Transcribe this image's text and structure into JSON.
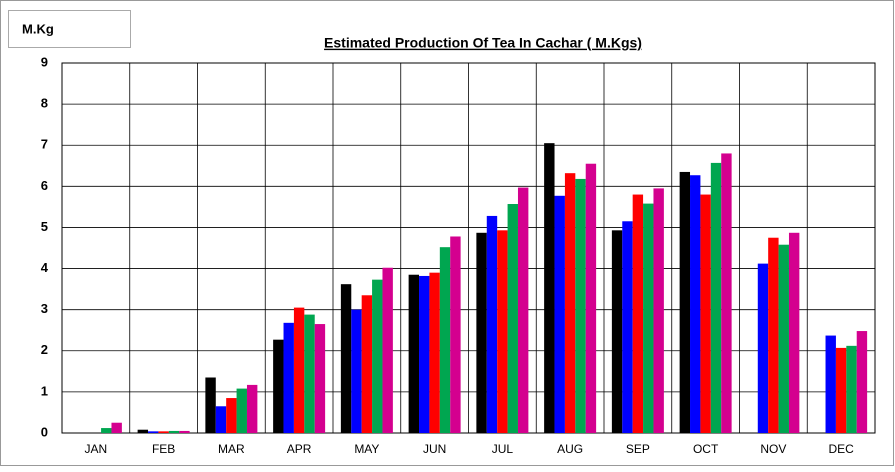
{
  "chart_data": {
    "type": "bar",
    "title": "Estimated Production Of Tea In Cachar ( M.Kgs)",
    "y_label": "M.Kg",
    "categories": [
      "JAN",
      "FEB",
      "MAR",
      "APR",
      "MAY",
      "JUN",
      "JUL",
      "AUG",
      "SEP",
      "OCT",
      "NOV",
      "DEC"
    ],
    "series": [
      {
        "color": "#000000",
        "values": [
          0,
          0.08,
          1.35,
          2.27,
          3.62,
          3.85,
          4.87,
          7.05,
          4.93,
          6.35,
          null,
          null
        ]
      },
      {
        "color": "#0000ff",
        "values": [
          0,
          0.04,
          0.65,
          2.68,
          3.0,
          3.82,
          5.28,
          5.77,
          5.15,
          6.27,
          4.12,
          2.37
        ]
      },
      {
        "color": "#ff0000",
        "values": [
          0,
          0.04,
          0.85,
          3.05,
          3.35,
          3.9,
          4.93,
          6.32,
          5.8,
          5.8,
          4.75,
          2.07
        ]
      },
      {
        "color": "#00a650",
        "values": [
          0.12,
          0.05,
          1.08,
          2.88,
          3.73,
          4.52,
          5.57,
          6.18,
          5.58,
          6.57,
          4.58,
          2.12
        ]
      },
      {
        "color": "#d4008f",
        "values": [
          0.25,
          0.05,
          1.17,
          2.65,
          4.02,
          4.78,
          5.97,
          6.55,
          5.95,
          6.8,
          4.87,
          2.48
        ]
      }
    ],
    "ylim": [
      0,
      9
    ],
    "yticks": [
      0,
      1,
      2,
      3,
      4,
      5,
      6,
      7,
      8,
      9
    ],
    "grid": true
  }
}
